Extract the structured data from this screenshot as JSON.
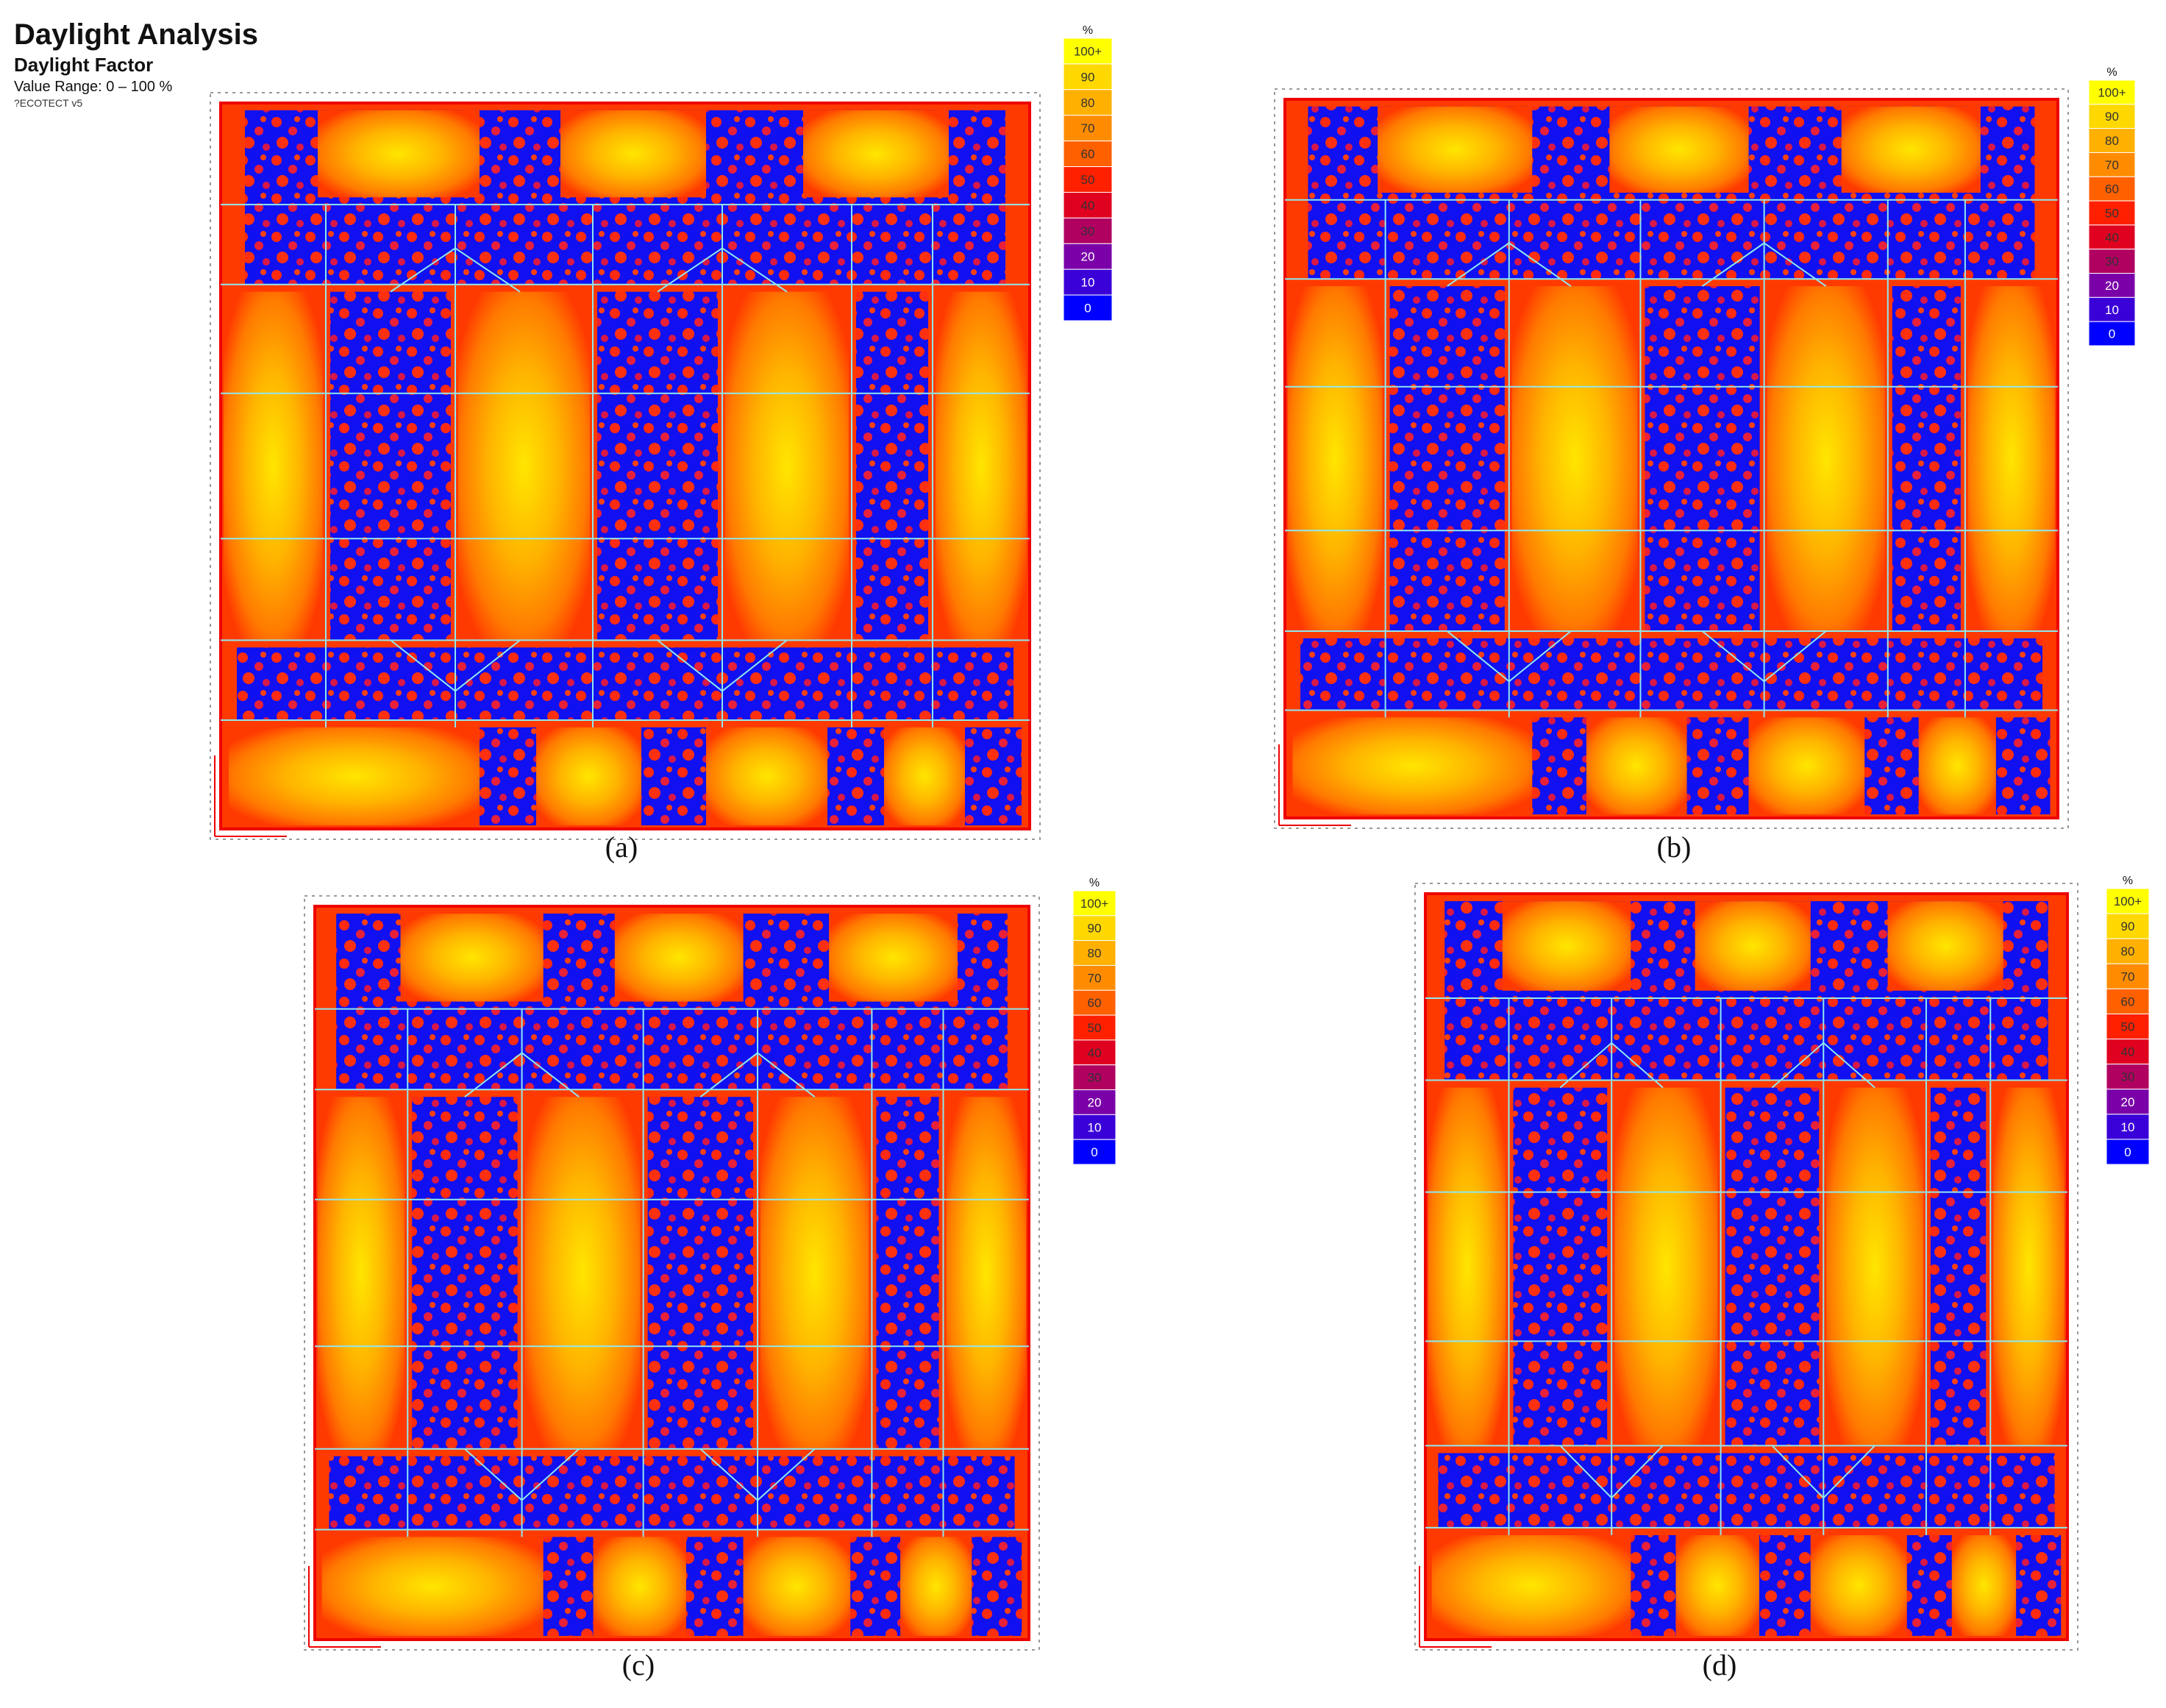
{
  "header": {
    "title": "Daylight Analysis",
    "subtitle": "Daylight Factor",
    "range": "Value Range: 0 – 100 %",
    "software": "?ECOTECT v5"
  },
  "legend": {
    "unit": "%",
    "labels": [
      "100+",
      "90",
      "80",
      "70",
      "60",
      "50",
      "40",
      "30",
      "20",
      "10",
      "0"
    ]
  },
  "panels": [
    {
      "caption": "(a)"
    },
    {
      "caption": "(b)"
    },
    {
      "caption": "(c)"
    },
    {
      "caption": "(d)"
    }
  ]
}
